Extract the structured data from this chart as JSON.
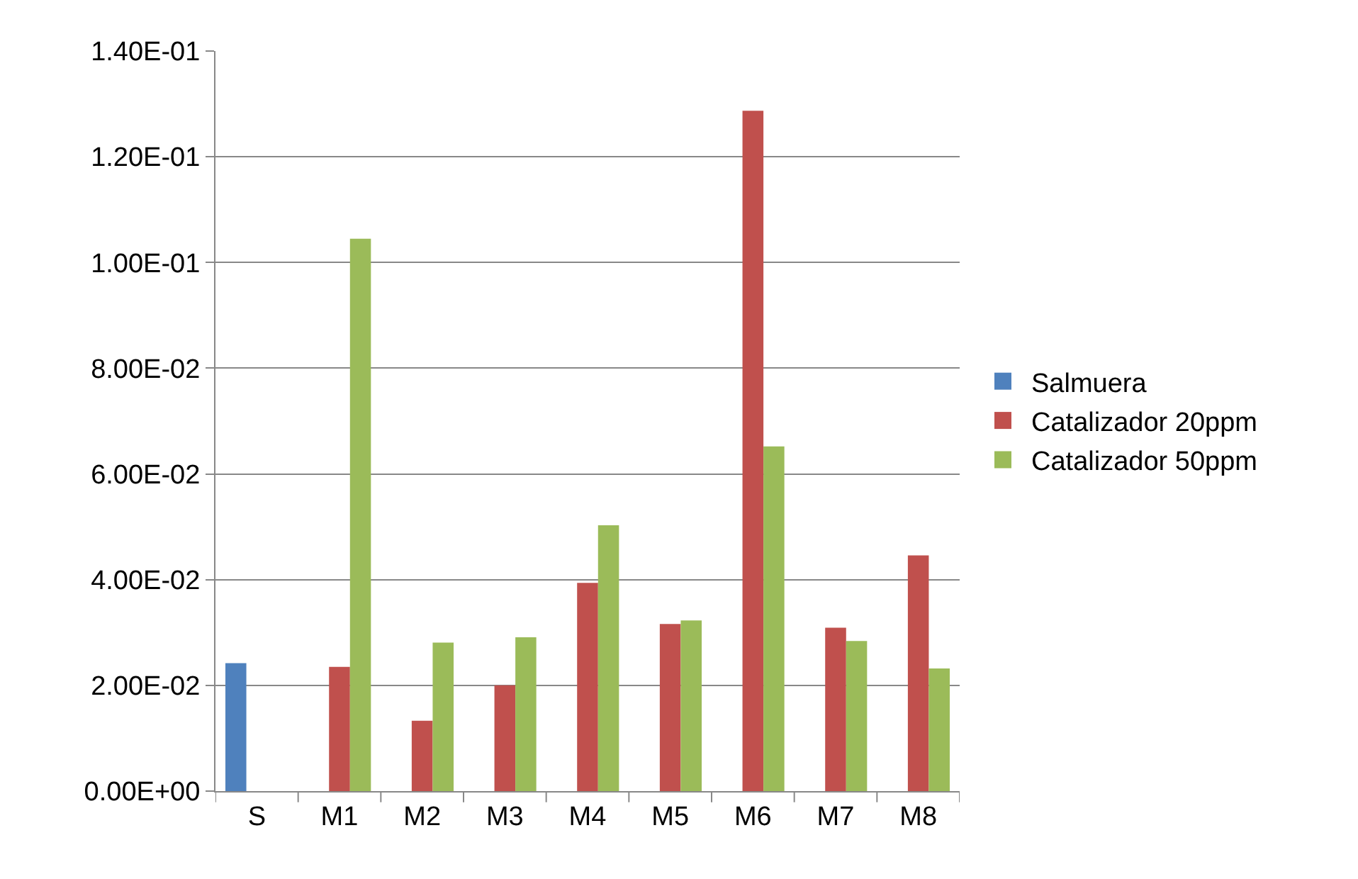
{
  "chart_data": {
    "type": "bar",
    "categories": [
      "S",
      "M1",
      "M2",
      "M3",
      "M4",
      "M5",
      "M6",
      "M7",
      "M8"
    ],
    "series": [
      {
        "name": "Salmuera",
        "color": "#4f81bd",
        "values": [
          0.0242,
          null,
          null,
          null,
          null,
          null,
          null,
          null,
          null
        ]
      },
      {
        "name": "Catalizador 20ppm",
        "color": "#c0504d",
        "values": [
          null,
          0.0235,
          0.0133,
          0.02,
          0.0394,
          0.0316,
          0.1287,
          0.0309,
          0.0446
        ]
      },
      {
        "name": "Catalizador 50ppm",
        "color": "#9bbb59",
        "values": [
          null,
          0.1045,
          0.0281,
          0.0291,
          0.0503,
          0.0323,
          0.0652,
          0.0284,
          0.0232
        ]
      }
    ],
    "ylim": [
      0,
      0.14
    ],
    "yticks": [
      {
        "value": 0,
        "label": "0.00E+00"
      },
      {
        "value": 0.02,
        "label": "2.00E-02"
      },
      {
        "value": 0.04,
        "label": "4.00E-02"
      },
      {
        "value": 0.06,
        "label": "6.00E-02"
      },
      {
        "value": 0.08,
        "label": "8.00E-02"
      },
      {
        "value": 0.1,
        "label": "1.00E-01"
      },
      {
        "value": 0.12,
        "label": "1.20E-01"
      },
      {
        "value": 0.14,
        "label": "1.40E-01"
      }
    ],
    "grid": "y",
    "legend": "right"
  }
}
